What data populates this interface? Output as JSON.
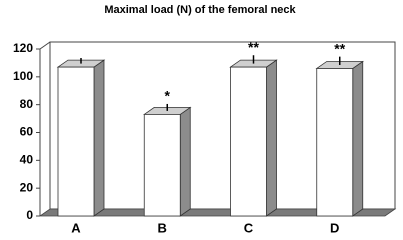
{
  "chart_data": {
    "type": "bar3d",
    "title": "Maximal load (N) of the femoral neck",
    "categories": [
      "A",
      "B",
      "C",
      "D"
    ],
    "values": [
      107,
      73,
      107,
      106
    ],
    "errors": [
      4,
      5,
      6,
      6
    ],
    "significance": [
      null,
      "*",
      "**",
      "**"
    ],
    "color": "#ffffff",
    "side_color": "#8c8c8c",
    "top_color": "#cfcfcf",
    "floor_color": "#7a7a7a",
    "ylim": [
      0,
      120
    ],
    "yticks": [
      0,
      20,
      40,
      60,
      80,
      100,
      120
    ],
    "grid": false
  }
}
